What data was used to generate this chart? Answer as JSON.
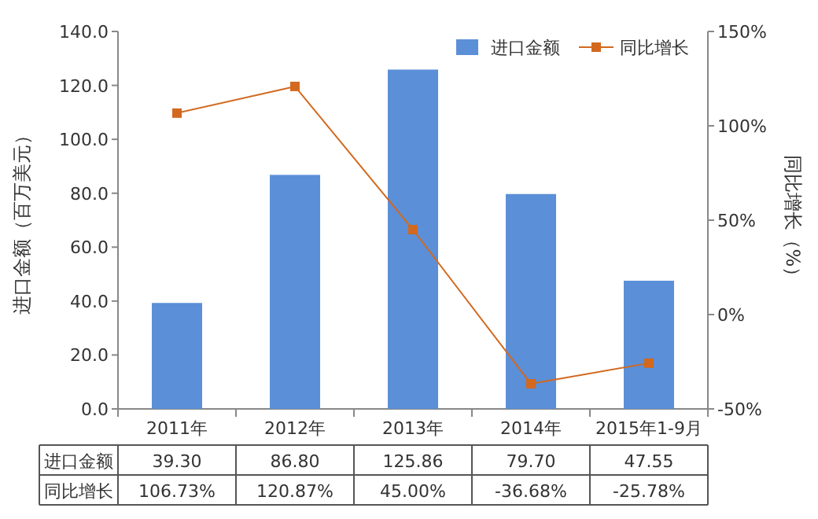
{
  "chart_data": {
    "type": "bar",
    "categories": [
      "2011年",
      "2012年",
      "2013年",
      "2014年",
      "2015年1-9月"
    ],
    "series": [
      {
        "name": "进口金额",
        "color": "#5b8fd8",
        "values": [
          39.3,
          86.8,
          125.86,
          79.7,
          47.55
        ],
        "value_labels": [
          "39.30",
          "86.80",
          "125.86",
          "79.70",
          "47.55"
        ]
      },
      {
        "name": "同比增长",
        "type": "line",
        "axis": "y2",
        "color": "#d2691e",
        "marker": "square",
        "values": [
          106.73,
          120.87,
          45.0,
          -36.68,
          -25.78
        ],
        "value_labels": [
          "106.73%",
          "120.87%",
          "45.00%",
          "-36.68%",
          "-25.78%"
        ]
      }
    ],
    "ylabel": "进口金额（百万美元）",
    "y2label": "同比增长（%）",
    "ylim": [
      0,
      140
    ],
    "yticks": [
      {
        "value": 0,
        "label": "0.0"
      },
      {
        "value": 20,
        "label": "20.0"
      },
      {
        "value": 40,
        "label": "40.0"
      },
      {
        "value": 60,
        "label": "60.0"
      },
      {
        "value": 80,
        "label": "80.0"
      },
      {
        "value": 100,
        "label": "100.0"
      },
      {
        "value": 120,
        "label": "120.0"
      },
      {
        "value": 140,
        "label": "140.0"
      }
    ],
    "y2lim": [
      -50,
      150
    ],
    "y2ticks": [
      {
        "value": -50,
        "label": "-50%"
      },
      {
        "value": 0,
        "label": "0%"
      },
      {
        "value": 50,
        "label": "50%"
      },
      {
        "value": 100,
        "label": "100%"
      },
      {
        "value": 150,
        "label": "150%"
      }
    ],
    "legend": "top right"
  }
}
